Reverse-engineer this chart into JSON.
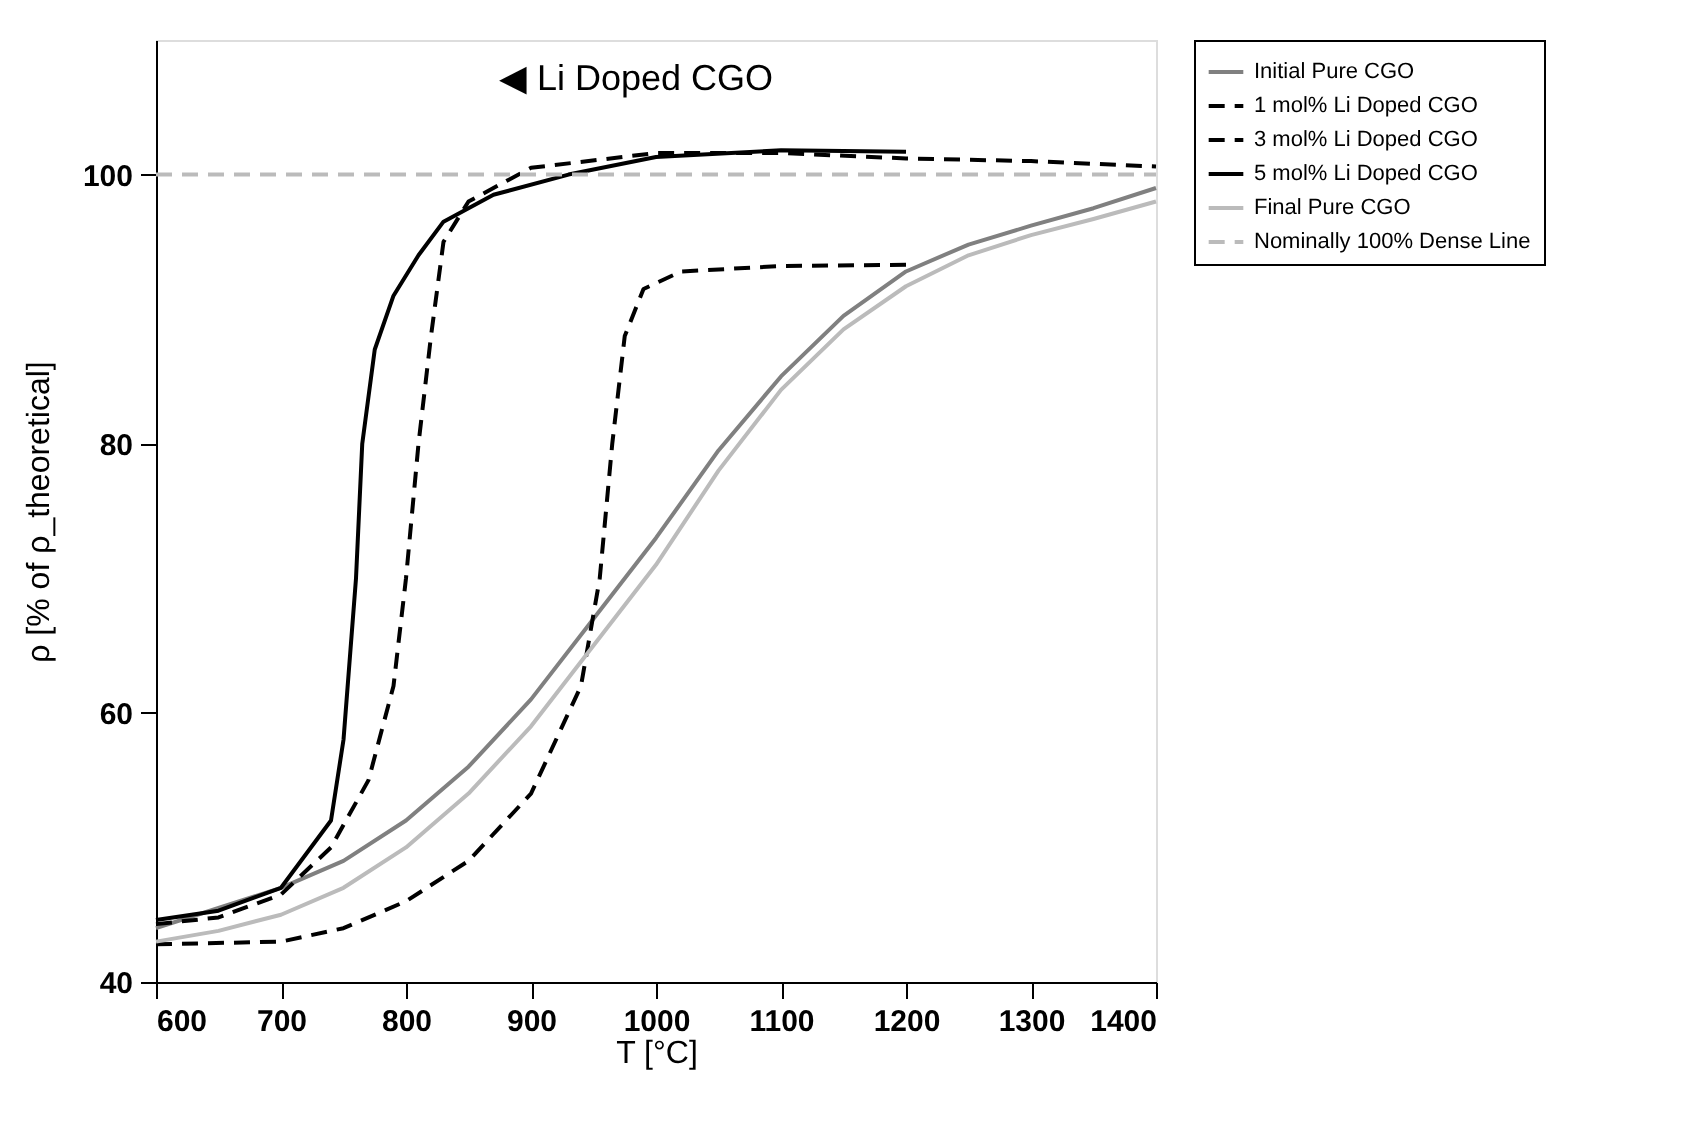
{
  "chart_data": {
    "type": "line",
    "xlabel": "T [°C]",
    "ylabel": "ρ [% of ρ_theoretical]",
    "xlim": [
      600,
      1400
    ],
    "xticks": [
      600,
      700,
      800,
      900,
      1000,
      1100,
      1200,
      1300,
      1400
    ],
    "ylim": [
      40,
      110
    ],
    "yticks": [
      40,
      60,
      80,
      100
    ],
    "grid": false,
    "legend": "right",
    "marker": "none",
    "annotations": [
      "◀ Li Doped CGO"
    ],
    "ref_lines": [
      {
        "axis": "y",
        "value": 100,
        "label": "Nominally 100% Dense Line",
        "color": "#bbbbbb",
        "line_style": "dashed"
      }
    ],
    "series": [
      {
        "name": "Initial Pure CGO",
        "color": "#808080",
        "line_style": "solid",
        "x": [
          600,
          650,
          700,
          750,
          800,
          850,
          900,
          950,
          1000,
          1050,
          1100,
          1150,
          1200,
          1250,
          1300,
          1350,
          1400
        ],
        "values": [
          44,
          45.5,
          47,
          49,
          52,
          56,
          61,
          67,
          73,
          79.5,
          85,
          89.5,
          92.8,
          94.8,
          96.2,
          97.5,
          99
        ]
      },
      {
        "name": "1 mol% Li Doped CGO",
        "color": "#000000",
        "line_style": "dashed",
        "x": [
          600,
          700,
          750,
          800,
          850,
          900,
          940,
          955,
          965,
          975,
          990,
          1020,
          1100,
          1200
        ],
        "values": [
          42.8,
          43,
          44,
          46,
          49,
          54,
          62,
          70,
          80,
          88,
          91.5,
          92.8,
          93.2,
          93.3
        ]
      },
      {
        "name": "3 mol% Li Doped CGO",
        "color": "#000000",
        "line_style": "dashed",
        "x": [
          600,
          650,
          700,
          740,
          770,
          790,
          800,
          810,
          820,
          830,
          850,
          900,
          1000,
          1100,
          1200,
          1300,
          1400
        ],
        "values": [
          44.3,
          44.8,
          46.5,
          50,
          55,
          62,
          70,
          80,
          88,
          95,
          98,
          100.5,
          101.6,
          101.6,
          101.2,
          101,
          100.6
        ]
      },
      {
        "name": "5 mol% Li Doped CGO",
        "color": "#000000",
        "line_style": "solid",
        "x": [
          600,
          650,
          700,
          740,
          750,
          760,
          765,
          775,
          790,
          810,
          830,
          870,
          930,
          1000,
          1100,
          1200
        ],
        "values": [
          44.6,
          45.3,
          47,
          52,
          58,
          70,
          80,
          87,
          91,
          94,
          96.5,
          98.5,
          100,
          101.3,
          101.8,
          101.7
        ]
      },
      {
        "name": "Final Pure CGO",
        "color": "#bbbbbb",
        "line_style": "solid",
        "x": [
          600,
          650,
          700,
          750,
          800,
          850,
          900,
          950,
          1000,
          1050,
          1100,
          1150,
          1200,
          1250,
          1300,
          1350,
          1400
        ],
        "values": [
          43,
          43.8,
          45,
          47,
          50,
          54,
          59,
          65,
          71,
          78,
          84,
          88.5,
          91.7,
          94,
          95.5,
          96.7,
          98
        ]
      }
    ]
  }
}
